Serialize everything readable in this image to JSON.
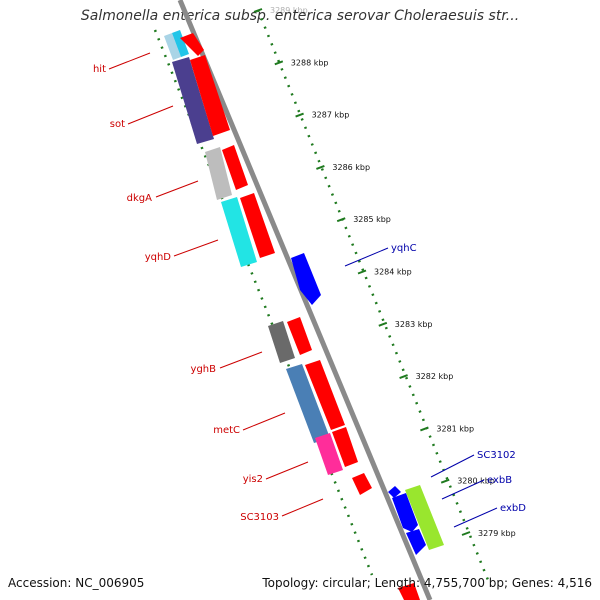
{
  "title": "Salmonella enterica subsp. enterica serovar Choleraesuis str...",
  "footer": {
    "accession": "Accession: NC_006905",
    "summary": "Topology: circular; Length: 4,755,700 bp; Genes: 4,516"
  },
  "kbp_labels": [
    "3289 kbp",
    "3288 kbp",
    "3287 kbp",
    "3286 kbp",
    "3285 kbp",
    "3284 kbp",
    "3283 kbp",
    "3282 kbp",
    "3281 kbp",
    "3280 kbp",
    "3279 kbp"
  ],
  "genes_left": [
    {
      "label": "hit",
      "color": "#4fb0d0"
    },
    {
      "label": "sot",
      "color": "#4b3f8f"
    },
    {
      "label": "dkgA",
      "color": "#bdbdbd"
    },
    {
      "label": "yqhD",
      "color": "#22e4e4"
    },
    {
      "label": "yghB",
      "color": "#6a6a6a"
    },
    {
      "label": "metC",
      "color": "#4a7fb5"
    },
    {
      "label": "yis2",
      "color": "#ff2d9a"
    },
    {
      "label": "SC3103",
      "color": "#ff0000"
    }
  ],
  "genes_right": [
    {
      "label": "yqhC",
      "color": "#0000ff"
    },
    {
      "label": "SC3102",
      "color": "#0000ff"
    },
    {
      "label": "exbB",
      "color": "#0000ff"
    },
    {
      "label": "exbD",
      "color": "#99e62e"
    }
  ],
  "colors": {
    "red_gene": "#ff0000",
    "backbone": "#8a8a8a",
    "tick": "#1f7a1f"
  }
}
